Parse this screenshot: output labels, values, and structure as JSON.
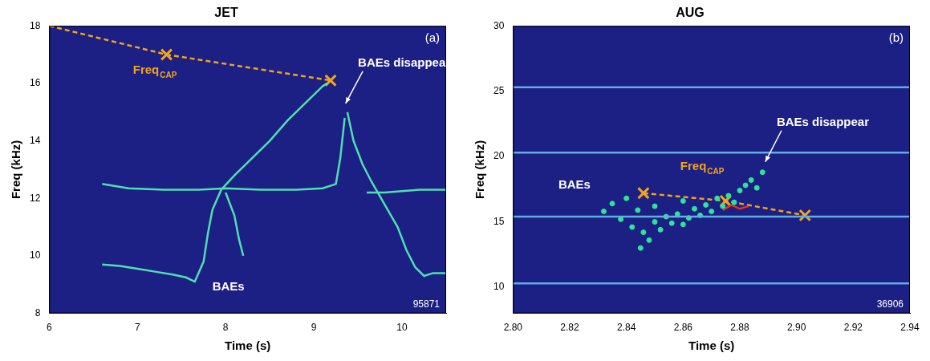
{
  "chart_data": [
    {
      "type": "line",
      "title": "JET",
      "panel": "(a)",
      "shot": "95871",
      "x_label": "Time (s)",
      "y_label": "Freq (kHz)",
      "xlim": [
        6,
        10.5
      ],
      "xticks": [
        6,
        7,
        8,
        9,
        10
      ],
      "ylim": [
        8,
        18
      ],
      "yticks": [
        8,
        10,
        12,
        14,
        16,
        18
      ],
      "grid": false,
      "series": [
        {
          "color": "#4fe0b0",
          "marker": "none",
          "line_style": "solid",
          "x": [
            6.6,
            6.8,
            7.0,
            7.2,
            7.4,
            7.55,
            7.65,
            7.75,
            7.8,
            7.85,
            7.95,
            8.1,
            8.3,
            8.5,
            8.7,
            8.9,
            9.1,
            9.15
          ],
          "values": [
            9.7,
            9.65,
            9.55,
            9.45,
            9.35,
            9.25,
            9.1,
            9.8,
            10.8,
            11.6,
            12.3,
            12.8,
            13.4,
            14.0,
            14.7,
            15.3,
            15.9,
            16.0
          ]
        },
        {
          "color": "#4fe0b0",
          "marker": "none",
          "line_style": "solid",
          "x": [
            6.6,
            6.9,
            7.3,
            7.7,
            8.0,
            8.4,
            8.8,
            9.1,
            9.25,
            9.3,
            9.35
          ],
          "values": [
            12.5,
            12.35,
            12.3,
            12.3,
            12.35,
            12.3,
            12.3,
            12.35,
            12.5,
            13.4,
            14.8
          ]
        },
        {
          "color": "#4fe0b0",
          "marker": "none",
          "line_style": "solid",
          "x": [
            9.38,
            9.45,
            9.55,
            9.65,
            9.8,
            9.95,
            10.05,
            10.15,
            10.25,
            10.35,
            10.5
          ],
          "values": [
            15.0,
            14.0,
            13.2,
            12.6,
            11.8,
            11.0,
            10.2,
            9.6,
            9.3,
            9.4,
            9.4
          ]
        },
        {
          "color": "#4fe0b0",
          "marker": "none",
          "line_style": "solid",
          "x": [
            9.6,
            9.8,
            10.0,
            10.2,
            10.5
          ],
          "values": [
            12.2,
            12.2,
            12.25,
            12.3,
            12.3
          ]
        },
        {
          "color": "#4fe0b0",
          "marker": "none",
          "line_style": "solid",
          "x": [
            8.0,
            8.1,
            8.15,
            8.2
          ],
          "values": [
            12.2,
            11.4,
            10.6,
            10.0
          ]
        },
        {
          "color": "#f2a51a",
          "marker": "none",
          "line_style": "dashed",
          "x": [
            6,
            7.33,
            9.19
          ],
          "values": [
            18,
            17,
            16.1
          ]
        },
        {
          "color": "#f2a51a",
          "marker": "x",
          "line_style": "none",
          "x": [
            7.33,
            9.19
          ],
          "values": [
            17,
            16.1
          ]
        }
      ],
      "annotations": [
        {
          "text": "Freq",
          "sub": "CAP",
          "x": 6.95,
          "y": 16.45,
          "color": "#f2a51a"
        },
        {
          "text": "BAEs disappear",
          "x": 9.5,
          "y": 16.7,
          "color": "#ffffff",
          "arrow_to": [
            9.36,
            15.3
          ]
        },
        {
          "text": "BAEs",
          "x": 7.85,
          "y": 8.9,
          "color": "#ffffff"
        }
      ]
    },
    {
      "type": "line",
      "title": "AUG",
      "panel": "(b)",
      "shot": "36906",
      "x_label": "Time (s)",
      "y_label": "Freq (kHz)",
      "xlim": [
        2.8,
        2.94
      ],
      "xticks": [
        {
          "value": 2.8,
          "label": "2.80"
        },
        2.82,
        2.84,
        2.86,
        2.88,
        {
          "value": 2.9,
          "label": "2.90"
        },
        2.92,
        2.94
      ],
      "ylim": [
        8,
        30
      ],
      "yticks": [
        10,
        15,
        20,
        25,
        30
      ],
      "grid": false,
      "series": [
        {
          "color": "#5fb0e0",
          "marker": "none",
          "line_style": "solid",
          "x": [
            2.8,
            2.94
          ],
          "values": [
            10.3,
            10.3
          ]
        },
        {
          "color": "#5fb0e0",
          "marker": "none",
          "line_style": "solid",
          "x": [
            2.8,
            2.94
          ],
          "values": [
            15.4,
            15.4
          ]
        },
        {
          "color": "#5fb0e0",
          "marker": "none",
          "line_style": "solid",
          "x": [
            2.8,
            2.94
          ],
          "values": [
            20.3,
            20.3
          ]
        },
        {
          "color": "#5fb0e0",
          "marker": "none",
          "line_style": "solid",
          "x": [
            2.8,
            2.94
          ],
          "values": [
            25.3,
            25.3
          ]
        },
        {
          "color": "#2ee39a",
          "marker": "circle",
          "line_style": "none",
          "x": [
            2.832,
            2.835,
            2.838,
            2.84,
            2.842,
            2.844,
            2.845,
            2.846,
            2.848,
            2.85,
            2.85,
            2.852,
            2.854,
            2.856,
            2.858,
            2.86,
            2.86,
            2.862,
            2.864,
            2.866,
            2.868,
            2.87,
            2.872,
            2.874,
            2.876,
            2.878,
            2.88,
            2.882,
            2.884,
            2.886,
            2.888
          ],
          "values": [
            15.8,
            16.4,
            15.2,
            16.8,
            14.6,
            15.9,
            13.0,
            14.2,
            13.6,
            15.0,
            16.2,
            14.4,
            15.4,
            14.9,
            15.6,
            14.8,
            16.6,
            15.3,
            16.0,
            15.5,
            16.3,
            15.8,
            16.8,
            16.2,
            17.0,
            16.5,
            17.4,
            17.8,
            18.2,
            17.6,
            18.8
          ]
        },
        {
          "color": "#e53020",
          "marker": "none",
          "line_style": "solid",
          "x": [
            2.874,
            2.877,
            2.88,
            2.883
          ],
          "values": [
            15.9,
            16.3,
            16.0,
            16.2
          ]
        },
        {
          "color": "#f2a51a",
          "marker": "x",
          "line_style": "dashed",
          "x": [
            2.846,
            2.875,
            2.903
          ],
          "values": [
            17.2,
            16.6,
            15.5
          ]
        }
      ],
      "annotations": [
        {
          "text": "BAEs",
          "x": 2.816,
          "y": 17.8,
          "color": "#ffffff"
        },
        {
          "text": "Freq",
          "sub": "CAP",
          "x": 2.859,
          "y": 19.2,
          "color": "#f2a51a"
        },
        {
          "text": "BAEs disappear",
          "x": 2.893,
          "y": 22.6,
          "color": "#ffffff",
          "arrow_to": [
            2.889,
            19.6
          ]
        }
      ]
    }
  ]
}
